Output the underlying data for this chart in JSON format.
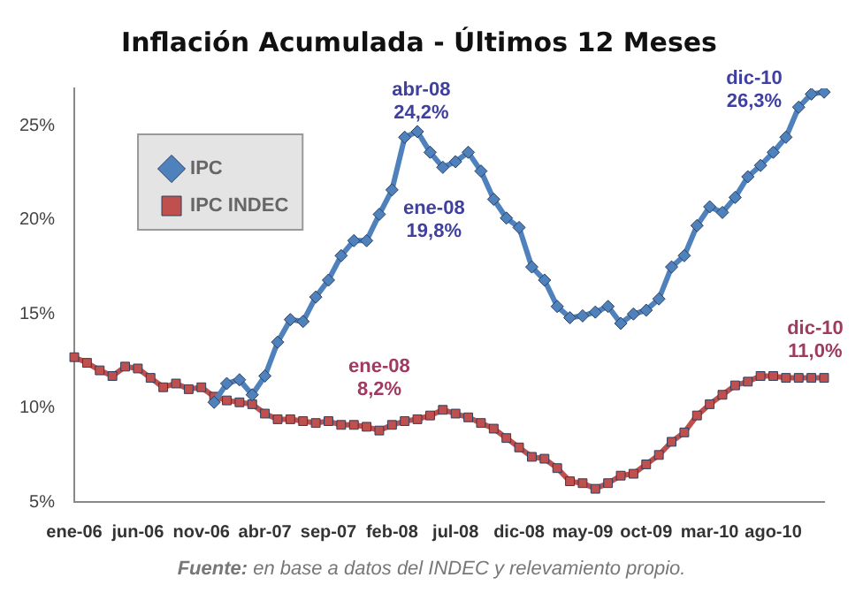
{
  "chart_data": {
    "type": "line",
    "title": "Inflación Acumulada - Últimos 12 Meses",
    "categories": [
      "ene-06",
      null,
      null,
      null,
      null,
      "jun-06",
      null,
      null,
      null,
      null,
      "nov-06",
      null,
      null,
      null,
      null,
      "abr-07",
      null,
      null,
      null,
      null,
      "sep-07",
      null,
      null,
      null,
      null,
      "feb-08",
      null,
      null,
      null,
      null,
      "jul-08",
      null,
      null,
      null,
      null,
      "dic-08",
      null,
      null,
      null,
      null,
      "may-09",
      null,
      null,
      null,
      null,
      "oct-09",
      null,
      null,
      null,
      null,
      "mar-10",
      null,
      null,
      null,
      null,
      "ago-10",
      null,
      null,
      null,
      null
    ],
    "series": [
      {
        "name": "IPC",
        "color": "#4f81bd",
        "marker": "diamond",
        "values": [
          null,
          null,
          null,
          null,
          null,
          null,
          null,
          null,
          null,
          null,
          null,
          10.3,
          11.3,
          11.5,
          10.7,
          11.7,
          13.5,
          14.7,
          14.6,
          15.9,
          16.8,
          18.1,
          18.9,
          18.9,
          20.3,
          21.6,
          24.4,
          24.7,
          23.6,
          22.8,
          23.1,
          23.6,
          22.6,
          21.1,
          20.1,
          19.6,
          17.5,
          16.8,
          15.4,
          14.8,
          14.9,
          15.1,
          15.4,
          14.5,
          15.0,
          15.2,
          15.8,
          17.5,
          18.1,
          19.7,
          20.7,
          20.4,
          21.2,
          22.3,
          22.9,
          23.6,
          24.4,
          26.0,
          26.7,
          26.8
        ]
      },
      {
        "name": "IPC INDEC",
        "color": "#c0504d",
        "marker": "square",
        "values": [
          12.7,
          12.4,
          12.0,
          11.7,
          12.2,
          12.1,
          11.6,
          11.1,
          11.3,
          11.0,
          11.1,
          10.6,
          10.4,
          10.3,
          10.2,
          9.7,
          9.4,
          9.4,
          9.3,
          9.2,
          9.3,
          9.1,
          9.1,
          9.0,
          8.8,
          9.1,
          9.3,
          9.4,
          9.6,
          9.9,
          9.7,
          9.5,
          9.2,
          8.9,
          8.4,
          7.9,
          7.4,
          7.3,
          6.8,
          6.1,
          6.0,
          5.7,
          6.0,
          6.4,
          6.5,
          7.0,
          7.5,
          8.2,
          8.7,
          9.6,
          10.2,
          10.7,
          11.2,
          11.4,
          11.7,
          11.7,
          11.6,
          11.6,
          11.6,
          11.6
        ]
      }
    ],
    "ylim": [
      5,
      27
    ],
    "yticks": [
      {
        "value": 5,
        "label": "5%"
      },
      {
        "value": 10,
        "label": "10%"
      },
      {
        "value": 15,
        "label": "15%"
      },
      {
        "value": 20,
        "label": "20%"
      },
      {
        "value": 25,
        "label": "25%"
      }
    ],
    "legend": "top left",
    "grid": false,
    "line_style": "solid",
    "annotations": [
      "abr-08 24,2%",
      "ene-08 19,8%",
      "ene-08 8,2%",
      "dic-10 26,3%",
      "dic-10 11,0%",
      "Fuente: en base a datos del INDEC y relevamiento propio."
    ]
  }
}
